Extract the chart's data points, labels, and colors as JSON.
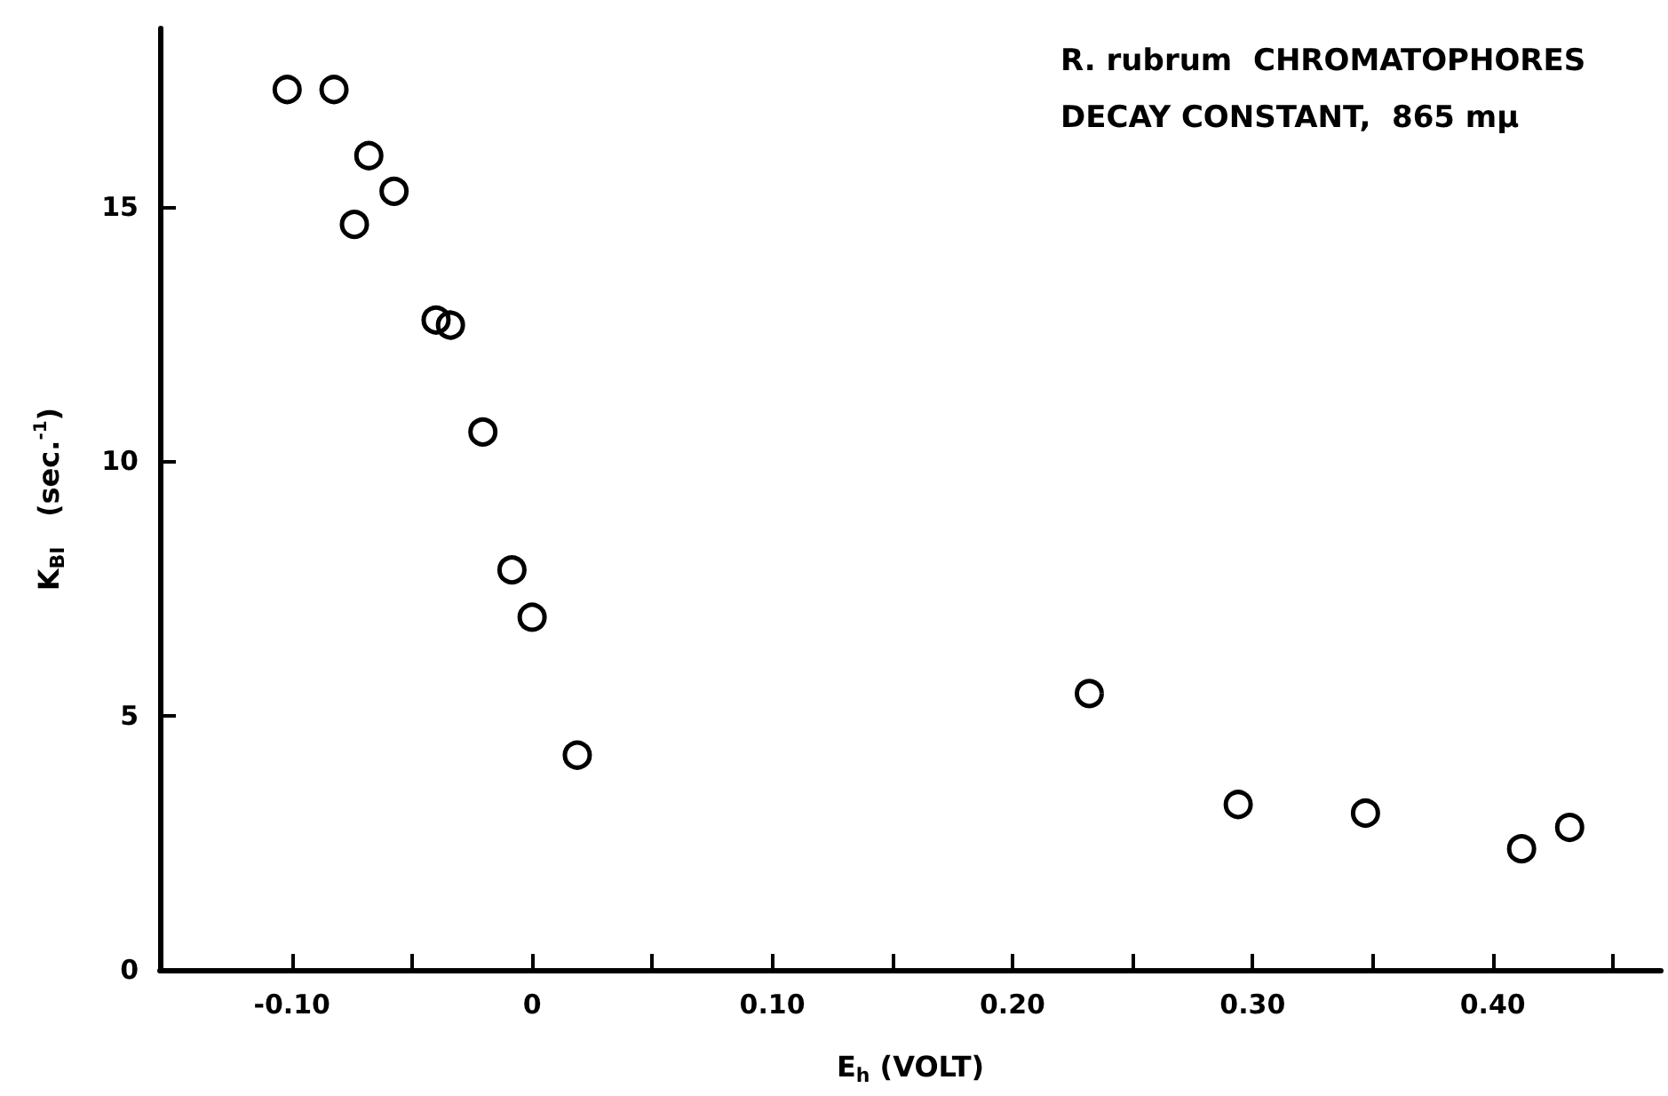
{
  "chart_data": {
    "type": "scatter",
    "xlabel": "E$_{h}$ (VOLT)",
    "ylabel": "K$_{BI}$   (sec.$^{-1}$)",
    "annotations": [
      "R. rubrum  CHROMATOPHORES",
      "DECAY CONSTANT,  865 mμ"
    ],
    "x": [
      -0.102,
      -0.0825,
      -0.068,
      -0.0575,
      -0.074,
      -0.04,
      -0.034,
      -0.0205,
      -0.0084,
      0.0,
      0.0188,
      0.232,
      0.294,
      0.347,
      0.412,
      0.432
    ],
    "values": [
      17.3,
      17.3,
      16.0,
      15.3,
      14.65,
      12.77,
      12.67,
      10.57,
      7.86,
      6.93,
      4.22,
      5.43,
      3.25,
      3.08,
      2.38,
      2.8
    ],
    "color": "#000000",
    "marker": "circle",
    "xlim": [
      -0.155,
      0.47
    ],
    "xticks": [
      {
        "value": -0.1,
        "label": "-0.10"
      },
      {
        "value": -0.05,
        "label": null
      },
      {
        "value": 0,
        "label": "0"
      },
      {
        "value": 0.05,
        "label": null
      },
      {
        "value": 0.1,
        "label": "0.10"
      },
      {
        "value": 0.15,
        "label": null
      },
      {
        "value": 0.2,
        "label": "0.20"
      },
      {
        "value": 0.25,
        "label": null
      },
      {
        "value": 0.3,
        "label": "0.30"
      },
      {
        "value": 0.35,
        "label": null
      },
      {
        "value": 0.4,
        "label": "0.40"
      },
      {
        "value": 0.45,
        "label": null
      }
    ],
    "ylim": [
      0,
      18.5
    ],
    "yticks": [
      0,
      5,
      10,
      15
    ],
    "grid": false
  }
}
